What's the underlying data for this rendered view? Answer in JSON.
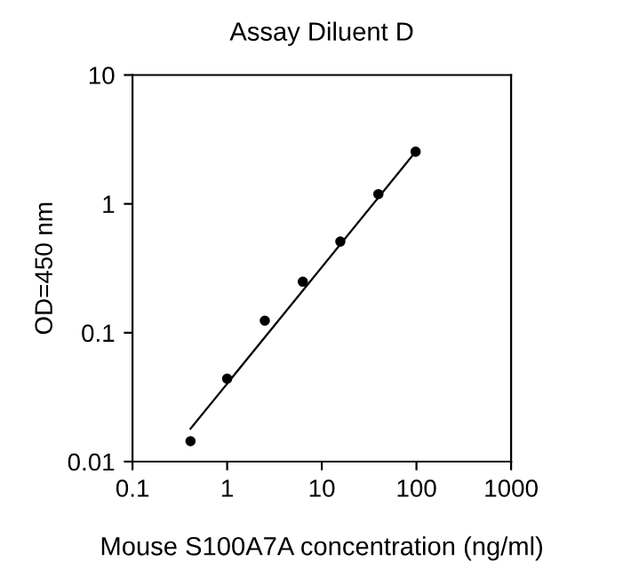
{
  "chart_data": {
    "type": "scatter",
    "title": "Assay Diluent D",
    "xlabel": "Mouse S100A7A concentration (ng/ml)",
    "ylabel": "OD=450 nm",
    "log": "xy",
    "xlim": [
      0.1,
      1000
    ],
    "ylim": [
      0.01,
      10
    ],
    "xticks": [
      0.1,
      1,
      10,
      100,
      1000
    ],
    "yticks": [
      0.01,
      0.1,
      1,
      10
    ],
    "grid": false,
    "legend": false,
    "marker": "circle",
    "series": [
      {
        "color": "#000000",
        "x": [
          0.41,
          1.0,
          2.5,
          6.3,
          15.7,
          39.6,
          98
        ],
        "values": [
          0.0144,
          0.044,
          0.124,
          0.249,
          0.51,
          1.19,
          2.54
        ]
      },
      {
        "type": "line",
        "color": "#000000",
        "marker": "none",
        "x": [
          0.41,
          98
        ],
        "values": [
          0.018,
          2.54
        ]
      }
    ]
  }
}
